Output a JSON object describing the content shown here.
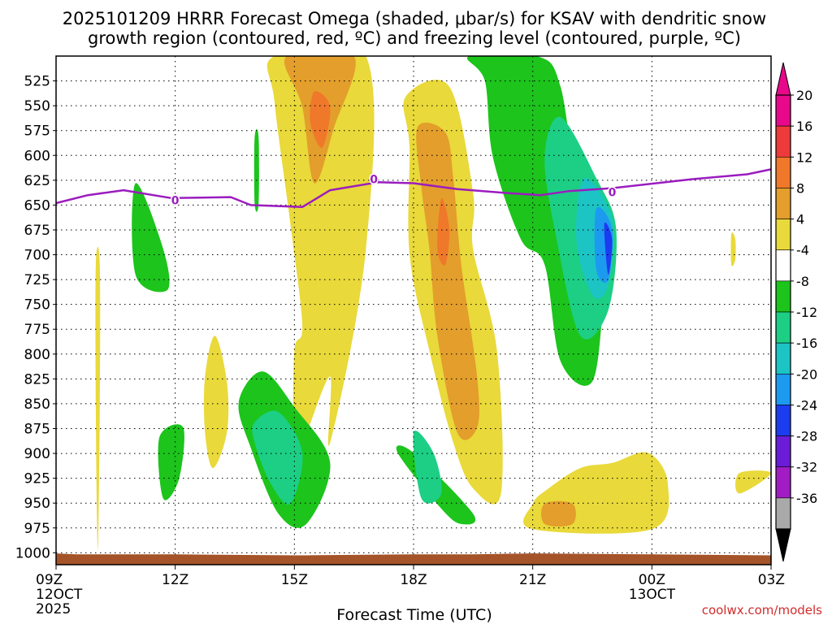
{
  "chart_data": {
    "type": "heatmap",
    "title_line1": "2025101209 HRRR Forecast Omega (shaded, μbar/s) for KSAV with dendritic snow",
    "title_line2": "growth region (contoured, red, ºC) and freezing level (contoured, purple, ºC)",
    "xlabel": "Forecast Time (UTC)",
    "xlim": [
      0,
      18
    ],
    "x_ticks": [
      {
        "value": 0,
        "label": "09Z",
        "sub1": "12OCT",
        "sub2": "2025"
      },
      {
        "value": 3,
        "label": "12Z",
        "sub1": "",
        "sub2": ""
      },
      {
        "value": 6,
        "label": "15Z",
        "sub1": "",
        "sub2": ""
      },
      {
        "value": 9,
        "label": "18Z",
        "sub1": "",
        "sub2": ""
      },
      {
        "value": 12,
        "label": "21Z",
        "sub1": "",
        "sub2": ""
      },
      {
        "value": 15,
        "label": "00Z",
        "sub1": "13OCT",
        "sub2": ""
      },
      {
        "value": 18,
        "label": "03Z",
        "sub1": "",
        "sub2": ""
      }
    ],
    "y_axis": {
      "levels_hPa": [
        525,
        550,
        575,
        600,
        625,
        650,
        675,
        700,
        725,
        750,
        775,
        800,
        825,
        850,
        875,
        900,
        925,
        950,
        975,
        1000
      ],
      "labels": [
        "525",
        "550",
        "575",
        "600",
        "625",
        "650",
        "675",
        "700",
        "725",
        "750",
        "775",
        "800",
        "825",
        "850",
        "875",
        "900",
        "925",
        "950",
        "975",
        "1000"
      ],
      "top_hPa": 500,
      "bottom_hPa": 1012
    },
    "colorbar": {
      "labels": [
        "20",
        "16",
        "12",
        "8",
        "4",
        "-4",
        "-8",
        "-12",
        "-16",
        "-20",
        "-24",
        "-28",
        "-32",
        "-36"
      ],
      "bins": [
        {
          "range": "> 24",
          "color": "#e8088a"
        },
        {
          "range": "20 to 24",
          "color": "#e8088a"
        },
        {
          "range": "16 to 20",
          "color": "#ee3a3a"
        },
        {
          "range": "12 to 16",
          "color": "#f0782a"
        },
        {
          "range": "8 to 12",
          "color": "#e39e2c"
        },
        {
          "range": "4 to 8",
          "color": "#e9d93a"
        },
        {
          "range": "-4 to 4",
          "color": "#ffffff"
        },
        {
          "range": "-8 to -4",
          "color": "#1cc41c"
        },
        {
          "range": "-12 to -8",
          "color": "#1ccf85"
        },
        {
          "range": "-16 to -12",
          "color": "#1cc4c4"
        },
        {
          "range": "-20 to -16",
          "color": "#1c9af0"
        },
        {
          "range": "-24 to -20",
          "color": "#1c3cf0"
        },
        {
          "range": "-28 to -24",
          "color": "#6a1cd8"
        },
        {
          "range": "-32 to -28",
          "color": "#a21cc4"
        },
        {
          "range": "-36 to -32",
          "color": "#a9a9a9"
        },
        {
          "range": "< -36",
          "color": "#000000"
        }
      ]
    },
    "omega_regions": [
      {
        "name": "pos-a",
        "color": "#e9d93a",
        "value_range": "4 to 8",
        "pts": [
          [
            1.0,
            0.41
          ],
          [
            1.0,
            0.69
          ],
          [
            1.05,
            0.97
          ],
          [
            1.1,
            0.69
          ],
          [
            1.1,
            0.41
          ]
        ]
      },
      {
        "name": "pos-b",
        "color": "#e9d93a",
        "value_range": "4 to 8",
        "pts": [
          [
            3.75,
            0.74
          ],
          [
            3.95,
            0.81
          ],
          [
            4.3,
            0.74
          ],
          [
            4.3,
            0.64
          ],
          [
            4.0,
            0.55
          ],
          [
            3.75,
            0.63
          ]
        ]
      },
      {
        "name": "pos-c",
        "color": "#e9d93a",
        "value_range": "4 to 8",
        "pts": [
          [
            5.5,
            0
          ],
          [
            7.8,
            0
          ],
          [
            7.8,
            0.38
          ],
          [
            6.9,
            0.76
          ],
          [
            6.9,
            0.63
          ],
          [
            6.3,
            0.74
          ],
          [
            6.0,
            0.76
          ],
          [
            6.0,
            0.58
          ],
          [
            6.2,
            0.53
          ],
          [
            5.9,
            0.33
          ],
          [
            5.5,
            0.09
          ]
        ]
      },
      {
        "name": "pos-c-inner",
        "color": "#e39e2c",
        "value_range": "8 to 12",
        "pts": [
          [
            5.8,
            0
          ],
          [
            7.5,
            0
          ],
          [
            7.0,
            0.14
          ],
          [
            6.5,
            0.25
          ],
          [
            6.2,
            0.1
          ]
        ]
      },
      {
        "name": "pos-c-core",
        "color": "#f0782a",
        "value_range": "12 to 16",
        "pts": [
          [
            6.5,
            0.07
          ],
          [
            6.9,
            0.1
          ],
          [
            6.7,
            0.18
          ],
          [
            6.4,
            0.13
          ]
        ]
      },
      {
        "name": "pos-d",
        "color": "#e9d93a",
        "value_range": "4 to 8",
        "pts": [
          [
            8.8,
            0.08
          ],
          [
            9.9,
            0.06
          ],
          [
            10.5,
            0.27
          ],
          [
            10.5,
            0.38
          ],
          [
            11.1,
            0.58
          ],
          [
            11.2,
            0.86
          ],
          [
            10.5,
            0.85
          ],
          [
            10.0,
            0.76
          ],
          [
            9.4,
            0.58
          ],
          [
            8.9,
            0.39
          ],
          [
            8.9,
            0.18
          ]
        ]
      },
      {
        "name": "pos-d-inner",
        "color": "#e39e2c",
        "value_range": "8 to 12",
        "pts": [
          [
            9.1,
            0.14
          ],
          [
            9.8,
            0.15
          ],
          [
            10.0,
            0.24
          ],
          [
            10.2,
            0.41
          ],
          [
            10.6,
            0.63
          ],
          [
            10.6,
            0.73
          ],
          [
            10.1,
            0.74
          ],
          [
            9.6,
            0.55
          ],
          [
            9.4,
            0.38
          ],
          [
            9.2,
            0.26
          ]
        ]
      },
      {
        "name": "pos-d-core",
        "color": "#f0782a",
        "value_range": "12 to 16",
        "pts": [
          [
            9.7,
            0.28
          ],
          [
            9.9,
            0.34
          ],
          [
            9.8,
            0.41
          ],
          [
            9.6,
            0.38
          ]
        ]
      },
      {
        "name": "pos-e",
        "color": "#e9d93a",
        "value_range": "4 to 8",
        "pts": [
          [
            12.0,
            0.93
          ],
          [
            15.0,
            0.93
          ],
          [
            15.4,
            0.84
          ],
          [
            14.9,
            0.78
          ],
          [
            14.0,
            0.8
          ],
          [
            13.2,
            0.81
          ],
          [
            12.4,
            0.85
          ],
          [
            12.0,
            0.88
          ]
        ]
      },
      {
        "name": "pos-e-inner",
        "color": "#e39e2c",
        "value_range": "8 to 12",
        "pts": [
          [
            12.3,
            0.88
          ],
          [
            13.0,
            0.88
          ],
          [
            13.0,
            0.92
          ],
          [
            12.3,
            0.92
          ]
        ]
      },
      {
        "name": "pos-f",
        "color": "#e9d93a",
        "value_range": "4 to 8",
        "pts": [
          [
            17.0,
            0.35
          ],
          [
            17.1,
            0.36
          ],
          [
            17.1,
            0.4
          ],
          [
            17.0,
            0.41
          ]
        ]
      },
      {
        "name": "pos-g",
        "color": "#e9d93a",
        "value_range": "4 to 8",
        "pts": [
          [
            17.2,
            0.82
          ],
          [
            18.0,
            0.82
          ],
          [
            17.2,
            0.86
          ]
        ]
      },
      {
        "name": "neg-a",
        "color": "#1cc41c",
        "value_range": "-8 to -4",
        "pts": [
          [
            2.0,
            0.25
          ],
          [
            2.7,
            0.38
          ],
          [
            2.8,
            0.46
          ],
          [
            2.0,
            0.43
          ]
        ]
      },
      {
        "name": "neg-b",
        "color": "#1cc41c",
        "value_range": "-8 to -4",
        "pts": [
          [
            5.0,
            0.16
          ],
          [
            5.1,
            0.16
          ],
          [
            5.1,
            0.29
          ],
          [
            5.0,
            0.29
          ]
        ]
      },
      {
        "name": "neg-c",
        "color": "#1cc41c",
        "value_range": "-8 to -4",
        "pts": [
          [
            2.6,
            0.75
          ],
          [
            3.2,
            0.73
          ],
          [
            3.1,
            0.83
          ],
          [
            2.7,
            0.87
          ]
        ]
      },
      {
        "name": "neg-d",
        "color": "#1cc41c",
        "value_range": "-8 to -4",
        "pts": [
          [
            4.6,
            0.68
          ],
          [
            5.2,
            0.62
          ],
          [
            6.0,
            0.69
          ],
          [
            6.9,
            0.8
          ],
          [
            6.3,
            0.92
          ],
          [
            5.6,
            0.9
          ],
          [
            4.9,
            0.77
          ]
        ]
      },
      {
        "name": "neg-d-inner",
        "color": "#1ccf85",
        "value_range": "-12 to -8",
        "pts": [
          [
            5.0,
            0.72
          ],
          [
            5.6,
            0.7
          ],
          [
            6.2,
            0.78
          ],
          [
            5.9,
            0.88
          ],
          [
            5.4,
            0.84
          ],
          [
            5.0,
            0.76
          ]
        ]
      },
      {
        "name": "neg-e",
        "color": "#1cc41c",
        "value_range": "-8 to -4",
        "pts": [
          [
            8.6,
            0.78
          ],
          [
            9.0,
            0.78
          ],
          [
            10.5,
            0.9
          ],
          [
            10.2,
            0.92
          ],
          [
            9.7,
            0.89
          ]
        ]
      },
      {
        "name": "neg-e-inner",
        "color": "#1ccf85",
        "value_range": "-12 to -8",
        "pts": [
          [
            9.0,
            0.74
          ],
          [
            9.5,
            0.78
          ],
          [
            9.7,
            0.86
          ],
          [
            9.2,
            0.87
          ]
        ]
      },
      {
        "name": "neg-f",
        "color": "#1cc41c",
        "value_range": "-8 to -4",
        "pts": [
          [
            10.4,
            0
          ],
          [
            12.1,
            0
          ],
          [
            12.7,
            0.06
          ],
          [
            13.2,
            0.29
          ],
          [
            14.0,
            0.36
          ],
          [
            13.8,
            0.47
          ],
          [
            13.5,
            0.64
          ],
          [
            12.7,
            0.6
          ],
          [
            12.3,
            0.41
          ],
          [
            11.7,
            0.36
          ],
          [
            11.0,
            0.2
          ],
          [
            10.8,
            0.05
          ]
        ]
      },
      {
        "name": "neg-f-inner",
        "color": "#1ccf85",
        "value_range": "-12 to -8",
        "pts": [
          [
            12.7,
            0.12
          ],
          [
            13.6,
            0.24
          ],
          [
            14.1,
            0.34
          ],
          [
            13.9,
            0.5
          ],
          [
            13.2,
            0.55
          ],
          [
            12.6,
            0.36
          ],
          [
            12.3,
            0.2
          ]
        ]
      },
      {
        "name": "neg-f-inner2",
        "color": "#1cc4c4",
        "value_range": "-16 to -12",
        "pts": [
          [
            13.3,
            0.24
          ],
          [
            14.0,
            0.32
          ],
          [
            13.9,
            0.45
          ],
          [
            13.5,
            0.47
          ],
          [
            13.1,
            0.36
          ]
        ]
      },
      {
        "name": "neg-f-core",
        "color": "#1c9af0",
        "value_range": "-20 to -16",
        "pts": [
          [
            13.6,
            0.3
          ],
          [
            14.0,
            0.34
          ],
          [
            13.9,
            0.44
          ],
          [
            13.6,
            0.42
          ]
        ]
      },
      {
        "name": "neg-f-center",
        "color": "#1c3cf0",
        "value_range": "-24 to -20",
        "pts": [
          [
            13.8,
            0.33
          ],
          [
            14.0,
            0.36
          ],
          [
            13.9,
            0.43
          ]
        ]
      }
    ],
    "freezing_level": {
      "label": "0",
      "color": "#9b1cbf",
      "points": [
        [
          0.0,
          648
        ],
        [
          0.8,
          640
        ],
        [
          1.7,
          635
        ],
        [
          2.9,
          643
        ],
        [
          4.4,
          642
        ],
        [
          4.9,
          650
        ],
        [
          6.2,
          652
        ],
        [
          6.9,
          635
        ],
        [
          8.1,
          627
        ],
        [
          9.0,
          628
        ],
        [
          10.1,
          634
        ],
        [
          11.4,
          638
        ],
        [
          12.2,
          640
        ],
        [
          12.9,
          636
        ],
        [
          14.0,
          633
        ],
        [
          16.0,
          624
        ],
        [
          17.4,
          619
        ],
        [
          18.0,
          614
        ]
      ],
      "label_points": [
        [
          3.0,
          645
        ],
        [
          8.0,
          624
        ],
        [
          14.0,
          637
        ]
      ]
    },
    "dendritic_snow_growth_contours": [],
    "surface_pressure": {
      "color": "#a55328",
      "label": "surface",
      "points": [
        [
          0,
          1001
        ],
        [
          0.5,
          1002
        ],
        [
          1,
          1002
        ],
        [
          3,
          1002
        ],
        [
          6,
          1003
        ],
        [
          9,
          1002
        ],
        [
          10.5,
          1002
        ],
        [
          12,
          1001
        ],
        [
          15,
          1002
        ],
        [
          18,
          1003
        ]
      ]
    }
  },
  "credit": "coolwx.com/models"
}
